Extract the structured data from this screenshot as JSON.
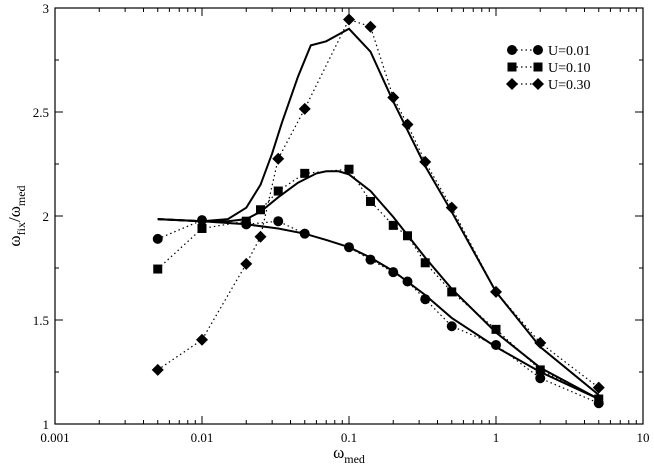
{
  "chart_data": {
    "type": "line",
    "xscale": "log",
    "xlim": [
      0.001,
      10
    ],
    "ylim": [
      1,
      3
    ],
    "x_ticks": [
      "0.001",
      "0.01",
      "0.1",
      "1",
      "10"
    ],
    "y_ticks": [
      "1",
      "1.5",
      "2",
      "2.5",
      "3"
    ],
    "xlabel": {
      "main": "ω",
      "sub": "med"
    },
    "ylabel": {
      "main": "ω",
      "sub1": "fix",
      "mid": "/ω",
      "sub2": "med"
    },
    "grid": false,
    "legend": {
      "placement": "top-right",
      "entries": [
        "U=0.01",
        "U=0.10",
        "U=0.30"
      ]
    },
    "series": [
      {
        "name": "U=0.01",
        "marker": "circle",
        "x": [
          0.005,
          0.01,
          0.02,
          0.033,
          0.05,
          0.1,
          0.14,
          0.2,
          0.25,
          0.33,
          0.5,
          1,
          2,
          5
        ],
        "y": [
          1.89,
          1.98,
          1.96,
          1.975,
          1.915,
          1.85,
          1.79,
          1.73,
          1.685,
          1.6,
          1.47,
          1.38,
          1.22,
          1.1
        ]
      },
      {
        "name": "U=0.10",
        "marker": "square",
        "x": [
          0.005,
          0.01,
          0.02,
          0.025,
          0.033,
          0.05,
          0.1,
          0.14,
          0.2,
          0.25,
          0.33,
          0.5,
          1,
          2,
          5
        ],
        "y": [
          1.745,
          1.94,
          1.975,
          2.03,
          2.12,
          2.205,
          2.225,
          2.07,
          1.955,
          1.905,
          1.775,
          1.635,
          1.455,
          1.26,
          1.12
        ]
      },
      {
        "name": "U=0.30",
        "marker": "diamond",
        "x": [
          0.005,
          0.01,
          0.02,
          0.025,
          0.033,
          0.05,
          0.1,
          0.14,
          0.2,
          0.25,
          0.33,
          0.5,
          1,
          2,
          5
        ],
        "y": [
          1.26,
          1.405,
          1.77,
          1.9,
          2.275,
          2.515,
          2.945,
          2.91,
          2.57,
          2.44,
          2.26,
          2.04,
          1.635,
          1.39,
          1.175
        ]
      }
    ],
    "fit_curves": [
      {
        "x": [
          0.005,
          0.01,
          0.02,
          0.033,
          0.05,
          0.07,
          0.1,
          0.14,
          0.2,
          0.33,
          0.5,
          1,
          2,
          5
        ],
        "y": [
          1.985,
          1.975,
          1.96,
          1.94,
          1.915,
          1.885,
          1.85,
          1.8,
          1.735,
          1.62,
          1.51,
          1.37,
          1.25,
          1.12
        ]
      },
      {
        "x": [
          0.005,
          0.01,
          0.015,
          0.02,
          0.025,
          0.033,
          0.045,
          0.06,
          0.07,
          0.085,
          0.1,
          0.14,
          0.2,
          0.33,
          0.5,
          1,
          2,
          5
        ],
        "y": [
          1.985,
          1.975,
          1.975,
          1.985,
          2.02,
          2.09,
          2.16,
          2.205,
          2.215,
          2.215,
          2.2,
          2.12,
          1.995,
          1.8,
          1.65,
          1.44,
          1.27,
          1.12
        ]
      },
      {
        "x": [
          0.005,
          0.01,
          0.015,
          0.02,
          0.025,
          0.03,
          0.035,
          0.045,
          0.055,
          0.07,
          0.1,
          0.14,
          0.2,
          0.33,
          0.5,
          1,
          2,
          5
        ],
        "y": [
          1.985,
          1.975,
          1.985,
          2.04,
          2.15,
          2.3,
          2.45,
          2.67,
          2.82,
          2.84,
          2.9,
          2.79,
          2.55,
          2.24,
          2.02,
          1.635,
          1.37,
          1.14
        ]
      }
    ]
  }
}
